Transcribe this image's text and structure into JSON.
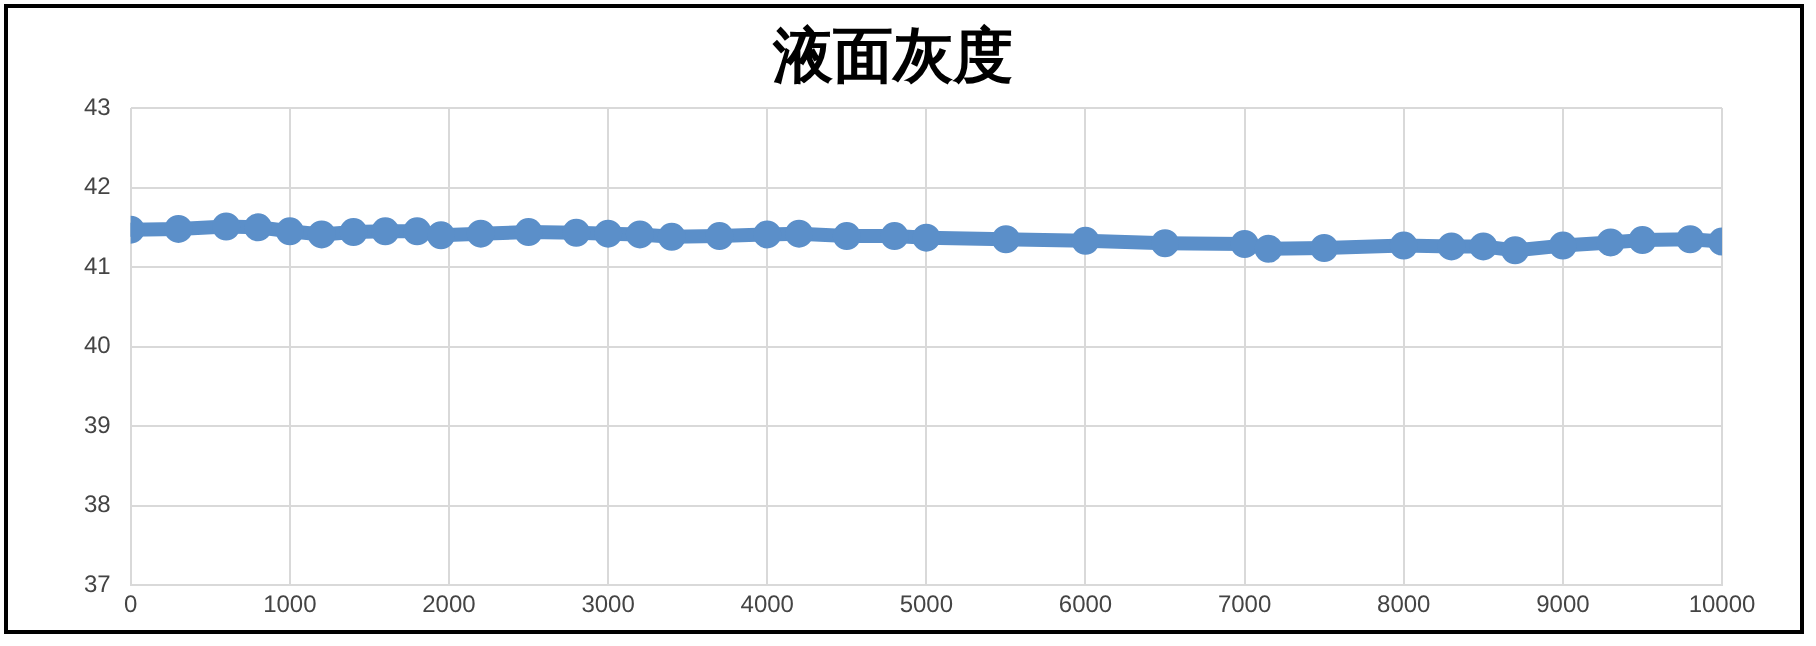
{
  "chart_data": {
    "type": "line",
    "title": "液面灰度",
    "x": [
      0,
      300,
      600,
      800,
      1000,
      1200,
      1400,
      1600,
      1800,
      1950,
      2200,
      2500,
      2800,
      3000,
      3200,
      3400,
      3700,
      4000,
      4200,
      4500,
      4800,
      5000,
      5500,
      6000,
      6500,
      7000,
      7150,
      7500,
      8000,
      8300,
      8500,
      8700,
      9000,
      9300,
      9500,
      9800,
      10000
    ],
    "series": [
      {
        "color": "#5b8fc9",
        "values": [
          41.47,
          41.48,
          41.51,
          41.5,
          41.45,
          41.41,
          41.44,
          41.45,
          41.45,
          41.4,
          41.42,
          41.44,
          41.43,
          41.42,
          41.41,
          41.38,
          41.39,
          41.41,
          41.42,
          41.39,
          41.39,
          41.37,
          41.35,
          41.33,
          41.3,
          41.29,
          41.23,
          41.24,
          41.27,
          41.26,
          41.26,
          41.21,
          41.27,
          41.31,
          41.34,
          41.35,
          41.32
        ]
      }
    ],
    "xlim": [
      0,
      10000
    ],
    "xticks": [
      0,
      1000,
      2000,
      3000,
      4000,
      5000,
      6000,
      7000,
      8000,
      9000,
      10000
    ],
    "ylim": [
      37,
      43
    ],
    "yticks": [
      37,
      38,
      39,
      40,
      41,
      42,
      43
    ],
    "grid": true,
    "marker": "circle",
    "legend": false
  }
}
